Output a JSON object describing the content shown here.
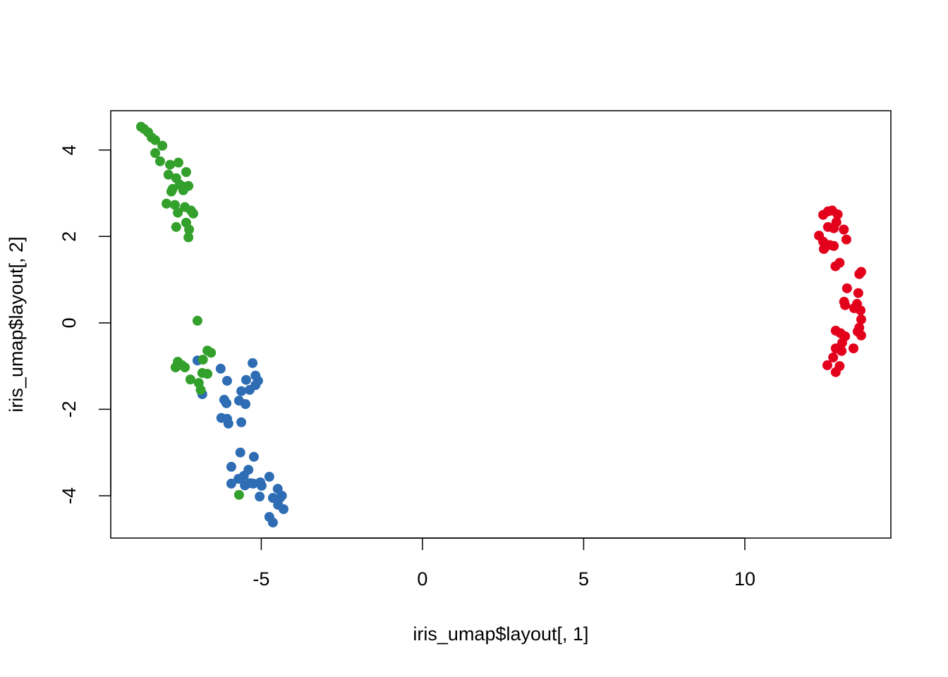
{
  "chart_data": {
    "type": "scatter",
    "x_label": "iris_umap$layout[, 1]",
    "y_label": "iris_umap$layout[, 2]",
    "xlim": [
      -9.67,
      14.53
    ],
    "ylim": [
      -4.98,
      4.91
    ],
    "xticks": [
      -5,
      0,
      5,
      10
    ],
    "yticks": [
      -4,
      -2,
      0,
      2,
      4
    ],
    "series": [
      {
        "color": "#e3001b",
        "x": [
          12.43,
          12.58,
          12.71,
          12.88,
          12.84,
          12.58,
          12.76,
          13.07,
          12.3,
          12.43,
          12.63,
          12.45,
          12.76,
          13.15,
          12.94,
          12.81,
          13.55,
          13.61,
          13.17,
          13.52,
          13.08,
          13.48,
          13.11,
          13.39,
          13.59,
          13.61,
          13.55,
          12.82,
          13.5,
          12.97,
          13.11,
          13.61,
          13.02,
          12.82,
          13.37,
          13.0,
          12.74,
          12.56,
          12.94,
          12.82
        ],
        "y": [
          2.5,
          2.58,
          2.6,
          2.51,
          2.33,
          2.22,
          2.19,
          2.16,
          2.02,
          1.88,
          1.8,
          1.71,
          1.78,
          1.93,
          1.39,
          1.31,
          1.13,
          1.18,
          0.8,
          0.69,
          0.49,
          0.44,
          0.41,
          0.34,
          0.29,
          0.08,
          -0.11,
          -0.18,
          -0.2,
          -0.24,
          -0.31,
          -0.29,
          -0.46,
          -0.59,
          -0.59,
          -0.65,
          -0.8,
          -0.98,
          -1.0,
          -1.14
        ]
      },
      {
        "color": "#2e6db4",
        "x": [
          -6.98,
          -6.83,
          -6.26,
          -6.06,
          -5.27,
          -5.47,
          -5.18,
          -5.1,
          -5.18,
          -5.36,
          -5.62,
          -5.69,
          -5.49,
          -6.15,
          -6.08,
          -6.24,
          -6.06,
          -6.02,
          -5.62,
          -5.65,
          -5.23,
          -5.93,
          -5.4,
          -5.54,
          -5.71,
          -4.75,
          -5.34,
          -5.93,
          -5.51,
          -5.25,
          -5.03,
          -4.99,
          -4.49,
          -5.05,
          -4.64,
          -4.42,
          -4.36,
          -4.48,
          -4.31,
          -4.75,
          -4.64
        ],
        "y": [
          -0.87,
          -1.65,
          -1.06,
          -1.34,
          -0.93,
          -1.32,
          -1.22,
          -1.34,
          -1.44,
          -1.55,
          -1.58,
          -1.8,
          -1.88,
          -1.78,
          -1.86,
          -2.2,
          -2.22,
          -2.33,
          -2.3,
          -3.0,
          -3.1,
          -3.33,
          -3.4,
          -3.54,
          -3.61,
          -3.56,
          -3.71,
          -3.72,
          -3.76,
          -3.72,
          -3.69,
          -3.77,
          -3.84,
          -4.02,
          -4.05,
          -4.05,
          -4.0,
          -4.21,
          -4.31,
          -4.49,
          -4.62
        ]
      },
      {
        "color": "#33a02c",
        "x": [
          -8.73,
          -8.64,
          -8.51,
          -8.4,
          -8.29,
          -8.07,
          -8.29,
          -8.14,
          -7.83,
          -7.57,
          -7.88,
          -7.64,
          -7.33,
          -7.53,
          -7.35,
          -7.75,
          -7.42,
          -7.26,
          -7.79,
          -7.94,
          -7.68,
          -7.37,
          -7.18,
          -7.59,
          -7.11,
          -7.33,
          -7.64,
          -7.24,
          -7.26,
          -6.98,
          -6.67,
          -6.56,
          -6.81,
          -7.59,
          -7.46,
          -7.66,
          -7.37,
          -6.83,
          -6.67,
          -7.2,
          -6.94,
          -6.88,
          -5.69
        ],
        "y": [
          4.54,
          4.49,
          4.41,
          4.29,
          4.23,
          4.1,
          3.93,
          3.74,
          3.66,
          3.71,
          3.43,
          3.35,
          3.49,
          3.2,
          3.15,
          3.1,
          3.07,
          3.17,
          3.04,
          2.76,
          2.73,
          2.68,
          2.6,
          2.55,
          2.53,
          2.32,
          2.22,
          2.16,
          1.98,
          0.05,
          -0.64,
          -0.69,
          -0.85,
          -0.9,
          -0.98,
          -1.03,
          -1.03,
          -1.16,
          -1.18,
          -1.31,
          -1.39,
          -1.55,
          -3.98
        ]
      }
    ]
  }
}
